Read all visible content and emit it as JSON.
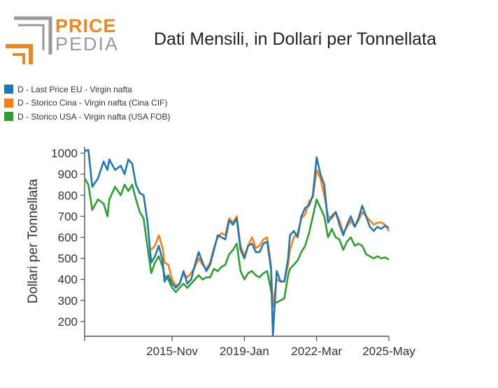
{
  "logo": {
    "word1": "PRICE",
    "word2": "PEDIA"
  },
  "colors": {
    "eu": "#1f77b4",
    "cina": "#ff7f0e",
    "usa": "#2ca02c",
    "logo_orange": "#f0861e",
    "logo_gray": "#9a9a9a"
  },
  "chart_data": {
    "type": "line",
    "title": "Dati Mensili, in Dollari per Tonnellata",
    "ylabel": "Dollari per Tonnellata",
    "xlabel": "",
    "ylim": [
      130,
      1030
    ],
    "yticks": [
      200,
      300,
      400,
      500,
      600,
      700,
      800,
      900,
      1000
    ],
    "xlim": [
      "2012-01",
      "2025-05"
    ],
    "xticks": [
      "2015-Nov",
      "2019-Jan",
      "2022-Mar",
      "2025-May"
    ],
    "legend_position": "top-left",
    "series": [
      {
        "name": "D - Last Price EU - Virgin nafta",
        "color": "#1f77b4",
        "points": [
          [
            "2012-01",
            1010
          ],
          [
            "2012-03",
            1015
          ],
          [
            "2012-05",
            840
          ],
          [
            "2012-08",
            880
          ],
          [
            "2012-11",
            960
          ],
          [
            "2013-01",
            920
          ],
          [
            "2013-02",
            970
          ],
          [
            "2013-05",
            920
          ],
          [
            "2013-08",
            940
          ],
          [
            "2013-10",
            900
          ],
          [
            "2013-12",
            970
          ],
          [
            "2014-02",
            950
          ],
          [
            "2014-04",
            850
          ],
          [
            "2014-06",
            810
          ],
          [
            "2014-08",
            800
          ],
          [
            "2014-10",
            680
          ],
          [
            "2014-12",
            480
          ],
          [
            "2015-02",
            510
          ],
          [
            "2015-04",
            560
          ],
          [
            "2015-06",
            490
          ],
          [
            "2015-07",
            390
          ],
          [
            "2015-09",
            420
          ],
          [
            "2015-11",
            380
          ],
          [
            "2016-01",
            360
          ],
          [
            "2016-03",
            380
          ],
          [
            "2016-05",
            440
          ],
          [
            "2016-07",
            380
          ],
          [
            "2016-09",
            400
          ],
          [
            "2016-11",
            470
          ],
          [
            "2017-01",
            530
          ],
          [
            "2017-03",
            480
          ],
          [
            "2017-05",
            440
          ],
          [
            "2017-07",
            470
          ],
          [
            "2017-09",
            540
          ],
          [
            "2017-11",
            610
          ],
          [
            "2018-01",
            600
          ],
          [
            "2018-03",
            590
          ],
          [
            "2018-05",
            680
          ],
          [
            "2018-07",
            660
          ],
          [
            "2018-09",
            690
          ],
          [
            "2018-11",
            540
          ],
          [
            "2019-01",
            500
          ],
          [
            "2019-03",
            560
          ],
          [
            "2019-05",
            570
          ],
          [
            "2019-07",
            530
          ],
          [
            "2019-09",
            530
          ],
          [
            "2019-11",
            570
          ],
          [
            "2020-01",
            580
          ],
          [
            "2020-03",
            450
          ],
          [
            "2020-04",
            135
          ],
          [
            "2020-06",
            440
          ],
          [
            "2020-08",
            390
          ],
          [
            "2020-10",
            390
          ],
          [
            "2020-12",
            500
          ],
          [
            "2021-01",
            610
          ],
          [
            "2021-03",
            630
          ],
          [
            "2021-05",
            600
          ],
          [
            "2021-07",
            700
          ],
          [
            "2021-09",
            740
          ],
          [
            "2021-11",
            750
          ],
          [
            "2022-01",
            800
          ],
          [
            "2022-03",
            980
          ],
          [
            "2022-05",
            900
          ],
          [
            "2022-07",
            850
          ],
          [
            "2022-09",
            670
          ],
          [
            "2022-11",
            700
          ],
          [
            "2023-01",
            720
          ],
          [
            "2023-03",
            660
          ],
          [
            "2023-05",
            610
          ],
          [
            "2023-07",
            660
          ],
          [
            "2023-09",
            700
          ],
          [
            "2023-11",
            650
          ],
          [
            "2024-01",
            690
          ],
          [
            "2024-03",
            750
          ],
          [
            "2024-05",
            700
          ],
          [
            "2024-07",
            650
          ],
          [
            "2024-09",
            630
          ],
          [
            "2024-11",
            650
          ],
          [
            "2025-01",
            640
          ],
          [
            "2025-03",
            655
          ],
          [
            "2025-05",
            645
          ]
        ]
      },
      {
        "name": "D - Storico Cina - Virgin nafta (Cina CIF)",
        "color": "#ff7f0e",
        "points": [
          [
            "2014-12",
            540
          ],
          [
            "2015-02",
            560
          ],
          [
            "2015-04",
            610
          ],
          [
            "2015-06",
            550
          ],
          [
            "2015-07",
            480
          ],
          [
            "2015-09",
            470
          ],
          [
            "2015-11",
            400
          ],
          [
            "2016-01",
            370
          ],
          [
            "2016-03",
            380
          ],
          [
            "2016-05",
            430
          ],
          [
            "2016-07",
            410
          ],
          [
            "2016-09",
            430
          ],
          [
            "2016-11",
            460
          ],
          [
            "2017-01",
            500
          ],
          [
            "2017-03",
            470
          ],
          [
            "2017-05",
            450
          ],
          [
            "2017-07",
            480
          ],
          [
            "2017-09",
            550
          ],
          [
            "2017-11",
            600
          ],
          [
            "2018-01",
            620
          ],
          [
            "2018-03",
            610
          ],
          [
            "2018-05",
            690
          ],
          [
            "2018-07",
            670
          ],
          [
            "2018-09",
            700
          ],
          [
            "2018-11",
            560
          ],
          [
            "2019-01",
            510
          ],
          [
            "2019-03",
            560
          ],
          [
            "2019-05",
            600
          ],
          [
            "2019-07",
            550
          ],
          [
            "2019-09",
            560
          ],
          [
            "2019-11",
            590
          ],
          [
            "2020-01",
            600
          ],
          [
            "2020-03",
            470
          ],
          [
            "2020-04",
            270
          ],
          [
            "2020-06",
            400
          ],
          [
            "2020-08",
            390
          ],
          [
            "2020-10",
            390
          ],
          [
            "2020-12",
            470
          ],
          [
            "2021-01",
            540
          ],
          [
            "2021-03",
            600
          ],
          [
            "2021-05",
            620
          ],
          [
            "2021-07",
            690
          ],
          [
            "2021-09",
            710
          ],
          [
            "2021-11",
            770
          ],
          [
            "2022-01",
            790
          ],
          [
            "2022-03",
            920
          ],
          [
            "2022-05",
            880
          ],
          [
            "2022-07",
            800
          ],
          [
            "2022-09",
            700
          ],
          [
            "2022-11",
            690
          ],
          [
            "2023-01",
            720
          ],
          [
            "2023-03",
            680
          ],
          [
            "2023-05",
            620
          ],
          [
            "2023-07",
            650
          ],
          [
            "2023-09",
            680
          ],
          [
            "2023-11",
            650
          ],
          [
            "2024-01",
            680
          ],
          [
            "2024-03",
            720
          ],
          [
            "2024-05",
            700
          ],
          [
            "2024-07",
            680
          ],
          [
            "2024-09",
            660
          ],
          [
            "2024-11",
            670
          ],
          [
            "2025-01",
            670
          ],
          [
            "2025-03",
            660
          ],
          [
            "2025-05",
            630
          ]
        ]
      },
      {
        "name": "D - Storico USA - Virgin nafta (USA FOB)",
        "color": "#2ca02c",
        "points": [
          [
            "2012-01",
            880
          ],
          [
            "2012-03",
            850
          ],
          [
            "2012-05",
            730
          ],
          [
            "2012-08",
            780
          ],
          [
            "2012-11",
            760
          ],
          [
            "2013-01",
            700
          ],
          [
            "2013-02",
            780
          ],
          [
            "2013-05",
            840
          ],
          [
            "2013-08",
            800
          ],
          [
            "2013-10",
            850
          ],
          [
            "2013-12",
            820
          ],
          [
            "2014-02",
            850
          ],
          [
            "2014-04",
            780
          ],
          [
            "2014-06",
            720
          ],
          [
            "2014-08",
            690
          ],
          [
            "2014-10",
            560
          ],
          [
            "2014-12",
            430
          ],
          [
            "2015-02",
            480
          ],
          [
            "2015-04",
            510
          ],
          [
            "2015-06",
            460
          ],
          [
            "2015-07",
            420
          ],
          [
            "2015-09",
            400
          ],
          [
            "2015-11",
            360
          ],
          [
            "2016-01",
            340
          ],
          [
            "2016-03",
            360
          ],
          [
            "2016-05",
            380
          ],
          [
            "2016-07",
            360
          ],
          [
            "2016-09",
            380
          ],
          [
            "2016-11",
            400
          ],
          [
            "2017-01",
            420
          ],
          [
            "2017-03",
            400
          ],
          [
            "2017-05",
            410
          ],
          [
            "2017-07",
            410
          ],
          [
            "2017-09",
            450
          ],
          [
            "2017-11",
            440
          ],
          [
            "2018-01",
            460
          ],
          [
            "2018-03",
            470
          ],
          [
            "2018-05",
            520
          ],
          [
            "2018-07",
            540
          ],
          [
            "2018-09",
            570
          ],
          [
            "2018-11",
            440
          ],
          [
            "2019-01",
            400
          ],
          [
            "2019-03",
            430
          ],
          [
            "2019-05",
            440
          ],
          [
            "2019-07",
            420
          ],
          [
            "2019-09",
            410
          ],
          [
            "2019-11",
            430
          ],
          [
            "2020-01",
            440
          ],
          [
            "2020-03",
            350
          ],
          [
            "2020-04",
            300
          ],
          [
            "2020-06",
            290
          ],
          [
            "2020-08",
            300
          ],
          [
            "2020-10",
            310
          ],
          [
            "2020-12",
            420
          ],
          [
            "2021-01",
            450
          ],
          [
            "2021-03",
            470
          ],
          [
            "2021-05",
            490
          ],
          [
            "2021-07",
            530
          ],
          [
            "2021-09",
            560
          ],
          [
            "2021-11",
            620
          ],
          [
            "2022-01",
            700
          ],
          [
            "2022-03",
            780
          ],
          [
            "2022-05",
            740
          ],
          [
            "2022-07",
            700
          ],
          [
            "2022-09",
            600
          ],
          [
            "2022-11",
            640
          ],
          [
            "2023-01",
            600
          ],
          [
            "2023-03",
            590
          ],
          [
            "2023-05",
            540
          ],
          [
            "2023-07",
            580
          ],
          [
            "2023-09",
            600
          ],
          [
            "2023-11",
            560
          ],
          [
            "2024-01",
            570
          ],
          [
            "2024-03",
            560
          ],
          [
            "2024-05",
            520
          ],
          [
            "2024-07",
            510
          ],
          [
            "2024-09",
            500
          ],
          [
            "2024-11",
            510
          ],
          [
            "2025-01",
            500
          ],
          [
            "2025-03",
            505
          ],
          [
            "2025-05",
            495
          ]
        ]
      }
    ]
  }
}
